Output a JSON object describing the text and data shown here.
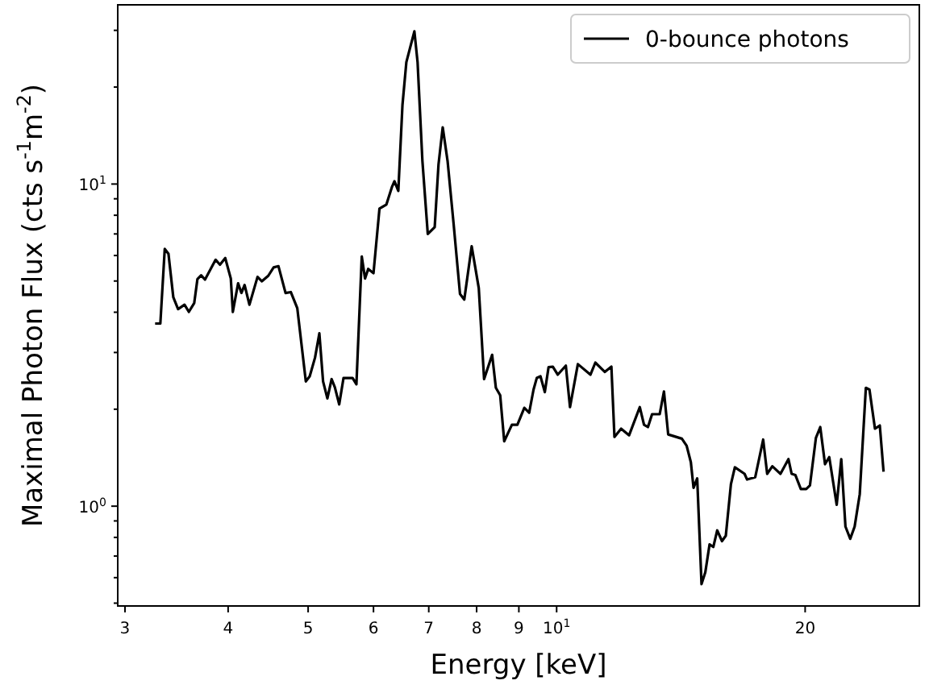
{
  "chart_data": {
    "type": "line",
    "xlabel": "Energy [keV]",
    "ylabel": "Maximal Photon Flux (cts s$^{-1}$m$^{-2}$)",
    "log": "xy",
    "legend": "top right",
    "grid": false,
    "line_style": "solid",
    "marker": "none",
    "xlim": [
      2.94,
      27.5
    ],
    "ylim": [
      0.49,
      36
    ],
    "xticks": [
      3,
      4,
      5,
      6,
      7,
      8,
      9,
      {
        "value": 10,
        "label": "10$^{1}$"
      },
      20
    ],
    "yticks": [
      {
        "value": 0.5,
        "label": null
      },
      {
        "value": 0.6,
        "label": null
      },
      {
        "value": 0.7,
        "label": null
      },
      {
        "value": 0.8,
        "label": null
      },
      {
        "value": 0.9,
        "label": null
      },
      {
        "value": 1,
        "label": "10$^{0}$"
      },
      {
        "value": 2,
        "label": null
      },
      {
        "value": 3,
        "label": null
      },
      {
        "value": 4,
        "label": null
      },
      {
        "value": 5,
        "label": null
      },
      {
        "value": 6,
        "label": null
      },
      {
        "value": 7,
        "label": null
      },
      {
        "value": 8,
        "label": null
      },
      {
        "value": 9,
        "label": null
      },
      {
        "value": 10,
        "label": "10$^{1}$"
      },
      {
        "value": 20,
        "label": null
      },
      {
        "value": 30,
        "label": null
      }
    ],
    "series": [
      {
        "name": "0-bounce photons",
        "color": "#000000",
        "x": [
          3.263,
          3.311,
          3.352,
          3.387,
          3.433,
          3.479,
          3.542,
          3.585,
          3.639,
          3.672,
          3.71,
          3.75,
          3.863,
          3.91,
          3.968,
          4.03,
          4.053,
          4.113,
          4.151,
          4.188,
          4.245,
          4.342,
          4.395,
          4.474,
          4.541,
          4.603,
          4.695,
          4.764,
          4.851,
          4.968,
          5.022,
          5.097,
          5.159,
          5.213,
          5.276,
          5.339,
          5.387,
          5.453,
          5.519,
          5.66,
          5.721,
          5.807,
          5.86,
          5.912,
          6.0,
          6.101,
          6.22,
          6.315,
          6.361,
          6.43,
          6.505,
          6.576,
          6.725,
          6.785,
          6.877,
          6.981,
          7.117,
          7.193,
          7.278,
          7.377,
          7.501,
          7.637,
          7.729,
          7.89,
          8.048,
          8.168,
          8.354,
          8.441,
          8.543,
          8.64,
          8.827,
          8.963,
          9.138,
          9.262,
          9.376,
          9.461,
          9.559,
          9.676,
          9.777,
          9.895,
          10.03,
          10.26,
          10.38,
          10.61,
          10.99,
          11.14,
          11.44,
          11.65,
          11.75,
          11.97,
          12.24,
          12.61,
          12.76,
          12.9,
          13.05,
          13.33,
          13.49,
          13.65,
          14.18,
          14.37,
          14.54,
          14.65,
          14.8,
          14.98,
          15.14,
          15.32,
          15.48,
          15.65,
          15.86,
          16.03,
          16.26,
          16.44,
          16.89,
          17.01,
          17.4,
          17.79,
          17.99,
          18.25,
          18.67,
          19.09,
          19.26,
          19.46,
          19.76,
          20.06,
          20.27,
          20.61,
          20.86,
          21.14,
          21.39,
          21.84,
          22.12,
          22.38,
          22.68,
          22.96,
          23.29,
          23.69,
          23.93,
          24.3,
          24.63,
          24.89
        ],
        "values": [
          3.69,
          3.69,
          6.29,
          6.07,
          4.45,
          4.09,
          4.22,
          4.01,
          4.27,
          5.07,
          5.21,
          5.05,
          5.82,
          5.62,
          5.89,
          5.09,
          4.01,
          4.92,
          4.59,
          4.86,
          4.22,
          5.15,
          4.99,
          5.19,
          5.51,
          5.56,
          4.59,
          4.62,
          4.12,
          2.44,
          2.53,
          2.89,
          3.44,
          2.44,
          2.16,
          2.48,
          2.34,
          2.07,
          2.5,
          2.5,
          2.39,
          5.96,
          5.09,
          5.45,
          5.29,
          8.39,
          8.64,
          9.77,
          10.2,
          9.52,
          17.6,
          23.9,
          29.8,
          23.9,
          11.8,
          7.0,
          7.35,
          11.5,
          15.0,
          11.8,
          7.56,
          4.56,
          4.38,
          6.41,
          4.75,
          2.48,
          2.95,
          2.33,
          2.21,
          1.59,
          1.79,
          1.79,
          2.02,
          1.95,
          2.3,
          2.5,
          2.53,
          2.26,
          2.7,
          2.71,
          2.56,
          2.73,
          2.03,
          2.76,
          2.56,
          2.79,
          2.61,
          2.71,
          1.64,
          1.74,
          1.66,
          2.03,
          1.79,
          1.76,
          1.93,
          1.93,
          2.27,
          1.67,
          1.62,
          1.54,
          1.37,
          1.14,
          1.22,
          0.573,
          0.624,
          0.761,
          0.747,
          0.841,
          0.779,
          0.81,
          1.17,
          1.32,
          1.26,
          1.21,
          1.23,
          1.61,
          1.26,
          1.33,
          1.26,
          1.4,
          1.26,
          1.25,
          1.13,
          1.13,
          1.16,
          1.63,
          1.76,
          1.35,
          1.42,
          1.01,
          1.4,
          0.864,
          0.792,
          0.864,
          1.09,
          2.33,
          2.3,
          1.74,
          1.78,
          1.28
        ]
      }
    ]
  }
}
